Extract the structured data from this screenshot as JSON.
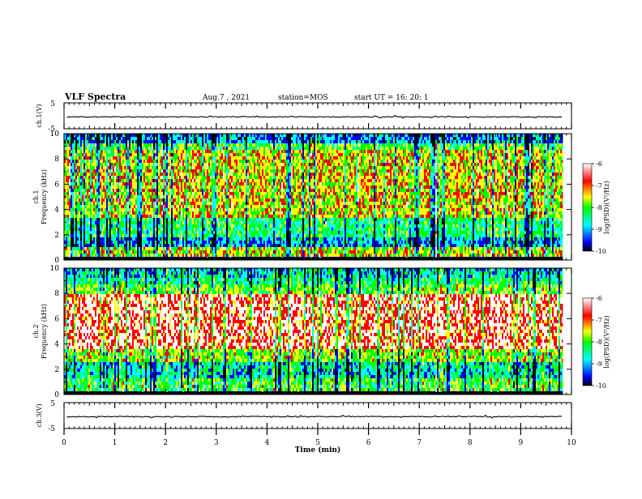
{
  "header": {
    "title": "VLF Spectra",
    "date": "Aug.7 , 2021",
    "station": "station=MOS",
    "start_ut": "start UT =  16: 20: 1"
  },
  "chart_data": [
    {
      "type": "line",
      "name": "waveform-ch1",
      "ylabel": "ch.1(V)",
      "ylim": [
        -5,
        5
      ],
      "yticks": [
        "5",
        "-5"
      ],
      "xlim": [
        0,
        10
      ],
      "baseline_value": -0.4
    },
    {
      "type": "heatmap",
      "name": "spectrogram-ch1",
      "ylabel_channel": "ch.1",
      "ylabel": "Frequency (kHz)",
      "ylim": [
        0,
        10
      ],
      "yticks": [
        "0",
        "2",
        "4",
        "6",
        "8",
        "10"
      ],
      "xlim": [
        0,
        10
      ],
      "colorbar": {
        "label": "log(PSD)(V²/Hz)",
        "range": [
          -10,
          -6
        ],
        "ticks": [
          "-6",
          "-7",
          "-8",
          "-9",
          "-10"
        ]
      },
      "band_profile": "ch1"
    },
    {
      "type": "heatmap",
      "name": "spectrogram-ch2",
      "ylabel_channel": "ch.2",
      "ylabel": "Frequency (kHz)",
      "ylim": [
        0,
        10
      ],
      "yticks": [
        "0",
        "2",
        "4",
        "6",
        "8",
        "10"
      ],
      "xlim": [
        0,
        10
      ],
      "colorbar": {
        "label": "log(PSD)(V²/Hz)",
        "range": [
          -10,
          -6
        ],
        "ticks": [
          "-6",
          "-7",
          "-8",
          "-9",
          "-10"
        ]
      },
      "band_profile": "ch2"
    },
    {
      "type": "line",
      "name": "waveform-ch3",
      "ylabel": "ch.3(V)",
      "ylim": [
        -5,
        5
      ],
      "yticks": [
        "5",
        "-5"
      ],
      "xlim": [
        0,
        10
      ],
      "baseline_value": -0.4
    }
  ],
  "x_axis": {
    "label": "Time (min)",
    "range": [
      0,
      10
    ],
    "ticks": [
      "0",
      "1",
      "2",
      "3",
      "4",
      "5",
      "6",
      "7",
      "8",
      "9",
      "10"
    ],
    "data_end": 9.83
  },
  "colors": {
    "colormap": [
      "#000000",
      "#0000ff",
      "#00ffff",
      "#00ff00",
      "#ffff00",
      "#ff0000",
      "#ffffff"
    ]
  }
}
